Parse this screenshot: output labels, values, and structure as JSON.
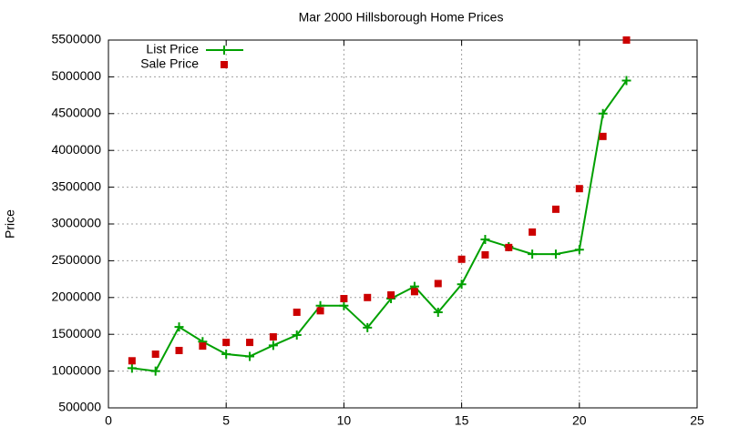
{
  "chart_data": {
    "type": "line",
    "title": "Mar 2000 Hillsborough Home Prices",
    "y_label": "Price",
    "x": [
      1,
      2,
      3,
      4,
      5,
      6,
      7,
      8,
      9,
      10,
      11,
      12,
      13,
      14,
      15,
      16,
      17,
      18,
      19,
      20,
      21,
      22
    ],
    "series": [
      {
        "name": "List Price",
        "color": "#00a000",
        "mode": "lines+markers",
        "marker": "plus",
        "values": [
          1040000,
          1000000,
          1600000,
          1400000,
          1230000,
          1200000,
          1350000,
          1490000,
          1890000,
          1890000,
          1590000,
          1985000,
          2150000,
          1800000,
          2180000,
          2790000,
          2690000,
          2590000,
          2590000,
          2650000,
          4500000,
          4950000
        ]
      },
      {
        "name": "Sale Price",
        "color": "#cc0000",
        "mode": "markers",
        "marker": "square",
        "values": [
          1140000,
          1230000,
          1280000,
          1340000,
          1390000,
          1390000,
          1465000,
          1800000,
          1820000,
          1985000,
          2000000,
          2035000,
          2080000,
          2190000,
          2520000,
          2580000,
          2680000,
          2890000,
          3200000,
          3480000,
          4190000,
          5500000
        ]
      }
    ],
    "xlim": [
      0,
      25
    ],
    "xticks": [
      0,
      5,
      10,
      15,
      20,
      25
    ],
    "ylim": [
      500000,
      5500000
    ],
    "yticks": [
      500000,
      1000000,
      1500000,
      2000000,
      2500000,
      3000000,
      3500000,
      4000000,
      4500000,
      5000000,
      5500000
    ],
    "grid": true,
    "legend": "top-left"
  }
}
